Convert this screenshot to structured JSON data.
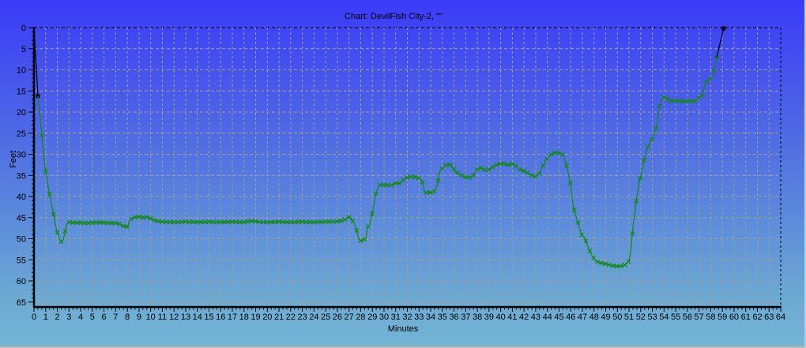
{
  "colors": {
    "background_top": "#3b3bf8",
    "background_bottom": "#74b5d5",
    "grid": "#a49f8e",
    "axis": "#000000",
    "profile": "#118a11",
    "entry_exit_leg": "#000000",
    "text": "#000000"
  },
  "chart_data": {
    "type": "line",
    "title": "Chart: DevilFish City-2, \"\"",
    "xlabel": "Minutes",
    "ylabel": "Feet",
    "xlim": [
      0,
      64
    ],
    "ylim": [
      0,
      65
    ],
    "y_inverted": true,
    "grid": true,
    "legend": "none",
    "x_ticks": [
      0,
      1,
      2,
      3,
      4,
      5,
      6,
      7,
      8,
      9,
      10,
      11,
      12,
      13,
      14,
      15,
      16,
      17,
      18,
      19,
      20,
      21,
      22,
      23,
      24,
      25,
      26,
      27,
      28,
      29,
      30,
      31,
      32,
      33,
      34,
      35,
      36,
      37,
      38,
      39,
      40,
      41,
      42,
      43,
      44,
      45,
      46,
      47,
      48,
      49,
      50,
      51,
      52,
      53,
      54,
      55,
      56,
      57,
      58,
      59,
      60,
      61,
      62,
      63,
      64
    ],
    "y_ticks": [
      0,
      5,
      10,
      15,
      20,
      25,
      30,
      35,
      40,
      45,
      50,
      55,
      60,
      65
    ],
    "sample_interval_min": 0.333,
    "series": [
      {
        "name": "entry-leg",
        "color": "#000000",
        "marker_at_end": true,
        "points": [
          [
            0,
            0
          ],
          [
            0.15,
            7
          ],
          [
            0.34,
            16.2
          ]
        ]
      },
      {
        "name": "depth-profile",
        "color": "#118a11",
        "markers": "resample",
        "points": [
          [
            0.34,
            16.2
          ],
          [
            0.63,
            24.3
          ],
          [
            0.93,
            32.7
          ],
          [
            1.22,
            37.8
          ],
          [
            1.45,
            41.0
          ],
          [
            1.61,
            43.3
          ],
          [
            1.84,
            46.8
          ],
          [
            2.0,
            48.5
          ],
          [
            2.18,
            50.0
          ],
          [
            2.33,
            50.7
          ],
          [
            2.5,
            50.4
          ],
          [
            2.67,
            48.2
          ],
          [
            2.84,
            46.4
          ],
          [
            3.0,
            46.1
          ],
          [
            3.5,
            46.2
          ],
          [
            4.0,
            46.2
          ],
          [
            4.5,
            46.3
          ],
          [
            5.0,
            46.2
          ],
          [
            5.5,
            46.1
          ],
          [
            6.0,
            46.2
          ],
          [
            6.5,
            46.3
          ],
          [
            7.0,
            46.3
          ],
          [
            7.33,
            46.5
          ],
          [
            7.67,
            47.0
          ],
          [
            8.0,
            47.2
          ],
          [
            8.15,
            46.0
          ],
          [
            8.4,
            45.1
          ],
          [
            8.7,
            44.9
          ],
          [
            9.0,
            44.8
          ],
          [
            9.3,
            45.0
          ],
          [
            9.7,
            44.9
          ],
          [
            10.0,
            45.2
          ],
          [
            10.3,
            45.6
          ],
          [
            10.7,
            45.9
          ],
          [
            11,
            46.0
          ],
          [
            12,
            46.1
          ],
          [
            13,
            46.0
          ],
          [
            14,
            46.1
          ],
          [
            15,
            46.0
          ],
          [
            16,
            46.1
          ],
          [
            17,
            46.0
          ],
          [
            18,
            46.1
          ],
          [
            18.5,
            45.8
          ],
          [
            19,
            45.9
          ],
          [
            19.5,
            46.1
          ],
          [
            20,
            46.1
          ],
          [
            21,
            46.0
          ],
          [
            22,
            46.1
          ],
          [
            23,
            46.0
          ],
          [
            24,
            46.1
          ],
          [
            25,
            46.0
          ],
          [
            26,
            45.9
          ],
          [
            26.5,
            45.7
          ],
          [
            26.9,
            45.0
          ],
          [
            27.1,
            44.8
          ],
          [
            27.4,
            46.2
          ],
          [
            27.6,
            47.5
          ],
          [
            27.8,
            49.8
          ],
          [
            28.0,
            50.6
          ],
          [
            28.2,
            50.4
          ],
          [
            28.45,
            49.9
          ],
          [
            28.6,
            47.2
          ],
          [
            28.75,
            46.9
          ],
          [
            28.9,
            45.2
          ],
          [
            29.1,
            42.3
          ],
          [
            29.25,
            40.0
          ],
          [
            29.4,
            38.5
          ],
          [
            29.6,
            37.2
          ],
          [
            29.8,
            37.4
          ],
          [
            30.0,
            37.2
          ],
          [
            30.3,
            37.3
          ],
          [
            30.6,
            37.4
          ],
          [
            30.8,
            37.0
          ],
          [
            31.1,
            36.8
          ],
          [
            31.4,
            36.9
          ],
          [
            31.7,
            35.9
          ],
          [
            32.0,
            35.5
          ],
          [
            32.3,
            35.3
          ],
          [
            32.6,
            35.4
          ],
          [
            32.9,
            35.5
          ],
          [
            33.1,
            35.8
          ],
          [
            33.3,
            36.5
          ],
          [
            33.45,
            38.8
          ],
          [
            33.6,
            39.1
          ],
          [
            33.9,
            39.0
          ],
          [
            34.2,
            39.2
          ],
          [
            34.4,
            38.4
          ],
          [
            34.6,
            36.8
          ],
          [
            34.8,
            33.9
          ],
          [
            35.0,
            33.3
          ],
          [
            35.2,
            32.7
          ],
          [
            35.5,
            32.4
          ],
          [
            35.8,
            32.6
          ],
          [
            36.1,
            34.2
          ],
          [
            36.4,
            34.5
          ],
          [
            36.7,
            35.1
          ],
          [
            37.0,
            35.5
          ],
          [
            37.3,
            35.5
          ],
          [
            37.6,
            35.2
          ],
          [
            37.9,
            33.8
          ],
          [
            38.2,
            33.2
          ],
          [
            38.5,
            33.4
          ],
          [
            38.8,
            34.0
          ],
          [
            39.1,
            33.4
          ],
          [
            39.4,
            32.9
          ],
          [
            39.7,
            32.4
          ],
          [
            40.0,
            32.3
          ],
          [
            40.3,
            32.2
          ],
          [
            40.6,
            32.6
          ],
          [
            40.9,
            32.3
          ],
          [
            41.2,
            32.4
          ],
          [
            41.5,
            33.4
          ],
          [
            41.8,
            33.8
          ],
          [
            42.1,
            34.1
          ],
          [
            42.4,
            34.6
          ],
          [
            42.7,
            35.1
          ],
          [
            43.0,
            35.3
          ],
          [
            43.3,
            34.6
          ],
          [
            43.6,
            32.8
          ],
          [
            43.9,
            31.4
          ],
          [
            44.2,
            30.2
          ],
          [
            44.5,
            29.8
          ],
          [
            44.8,
            29.5
          ],
          [
            45.1,
            29.7
          ],
          [
            45.4,
            30.3
          ],
          [
            45.7,
            33.4
          ],
          [
            45.95,
            36.5
          ],
          [
            46.15,
            41.2
          ],
          [
            46.35,
            44.0
          ],
          [
            46.55,
            45.4
          ],
          [
            46.8,
            48.0
          ],
          [
            47.0,
            49.4
          ],
          [
            47.2,
            49.8
          ],
          [
            47.5,
            52.1
          ],
          [
            47.8,
            53.9
          ],
          [
            48.1,
            55.2
          ],
          [
            48.4,
            55.6
          ],
          [
            48.7,
            55.8
          ],
          [
            49.0,
            56.0
          ],
          [
            49.3,
            56.2
          ],
          [
            49.6,
            56.4
          ],
          [
            49.9,
            56.5
          ],
          [
            50.2,
            56.5
          ],
          [
            50.5,
            56.4
          ],
          [
            50.8,
            55.9
          ],
          [
            51.0,
            55.3
          ],
          [
            51.15,
            52.8
          ],
          [
            51.35,
            47.0
          ],
          [
            51.6,
            41.5
          ],
          [
            51.85,
            37.0
          ],
          [
            52.1,
            34.0
          ],
          [
            52.35,
            30.5
          ],
          [
            52.6,
            28.3
          ],
          [
            52.9,
            26.8
          ],
          [
            53.2,
            25.0
          ],
          [
            53.4,
            22.5
          ],
          [
            53.6,
            18.8
          ],
          [
            53.8,
            17.0
          ],
          [
            54.0,
            16.3
          ],
          [
            54.2,
            16.6
          ],
          [
            54.4,
            17.3
          ],
          [
            54.7,
            17.4
          ],
          [
            55.0,
            17.3
          ],
          [
            55.3,
            17.4
          ],
          [
            55.6,
            17.5
          ],
          [
            55.9,
            17.4
          ],
          [
            56.2,
            17.4
          ],
          [
            56.5,
            17.5
          ],
          [
            56.8,
            17.3
          ],
          [
            57.0,
            16.5
          ],
          [
            57.2,
            16.3
          ],
          [
            57.35,
            15.8
          ],
          [
            57.5,
            13.3
          ],
          [
            57.7,
            12.7
          ],
          [
            57.9,
            12.3
          ],
          [
            58.1,
            11.9
          ],
          [
            58.25,
            10.8
          ],
          [
            58.5,
            7.1
          ]
        ]
      },
      {
        "name": "exit-leg",
        "color": "#000000",
        "marker_at_end": true,
        "points": [
          [
            58.5,
            7.1
          ],
          [
            59.1,
            0.2
          ]
        ]
      }
    ]
  }
}
